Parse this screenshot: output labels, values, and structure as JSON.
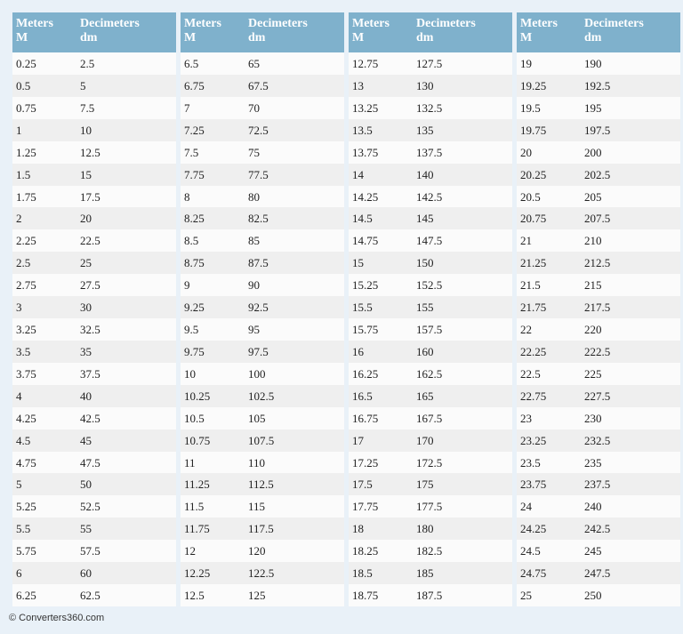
{
  "tables": [
    {
      "columns": [
        [
          "Meters",
          "M"
        ],
        [
          "Decimeters",
          "dm"
        ]
      ],
      "rows": [
        [
          0.25,
          2.5
        ],
        [
          0.5,
          5
        ],
        [
          0.75,
          7.5
        ],
        [
          1,
          10
        ],
        [
          1.25,
          12.5
        ],
        [
          1.5,
          15
        ],
        [
          1.75,
          17.5
        ],
        [
          2,
          20
        ],
        [
          2.25,
          22.5
        ],
        [
          2.5,
          25
        ],
        [
          2.75,
          27.5
        ],
        [
          3,
          30
        ],
        [
          3.25,
          32.5
        ],
        [
          3.5,
          35
        ],
        [
          3.75,
          37.5
        ],
        [
          4,
          40
        ],
        [
          4.25,
          42.5
        ],
        [
          4.5,
          45
        ],
        [
          4.75,
          47.5
        ],
        [
          5,
          50
        ],
        [
          5.25,
          52.5
        ],
        [
          5.5,
          55
        ],
        [
          5.75,
          57.5
        ],
        [
          6,
          60
        ],
        [
          6.25,
          62.5
        ]
      ]
    },
    {
      "columns": [
        [
          "Meters",
          "M"
        ],
        [
          "Decimeters",
          "dm"
        ]
      ],
      "rows": [
        [
          6.5,
          65
        ],
        [
          6.75,
          67.5
        ],
        [
          7,
          70
        ],
        [
          7.25,
          72.5
        ],
        [
          7.5,
          75
        ],
        [
          7.75,
          77.5
        ],
        [
          8,
          80
        ],
        [
          8.25,
          82.5
        ],
        [
          8.5,
          85
        ],
        [
          8.75,
          87.5
        ],
        [
          9,
          90
        ],
        [
          9.25,
          92.5
        ],
        [
          9.5,
          95
        ],
        [
          9.75,
          97.5
        ],
        [
          10,
          100
        ],
        [
          10.25,
          102.5
        ],
        [
          10.5,
          105
        ],
        [
          10.75,
          107.5
        ],
        [
          11,
          110
        ],
        [
          11.25,
          112.5
        ],
        [
          11.5,
          115
        ],
        [
          11.75,
          117.5
        ],
        [
          12,
          120
        ],
        [
          12.25,
          122.5
        ],
        [
          12.5,
          125
        ]
      ]
    },
    {
      "columns": [
        [
          "Meters",
          "M"
        ],
        [
          "Decimeters",
          "dm"
        ]
      ],
      "rows": [
        [
          12.75,
          127.5
        ],
        [
          13,
          130
        ],
        [
          13.25,
          132.5
        ],
        [
          13.5,
          135
        ],
        [
          13.75,
          137.5
        ],
        [
          14,
          140
        ],
        [
          14.25,
          142.5
        ],
        [
          14.5,
          145
        ],
        [
          14.75,
          147.5
        ],
        [
          15,
          150
        ],
        [
          15.25,
          152.5
        ],
        [
          15.5,
          155
        ],
        [
          15.75,
          157.5
        ],
        [
          16,
          160
        ],
        [
          16.25,
          162.5
        ],
        [
          16.5,
          165
        ],
        [
          16.75,
          167.5
        ],
        [
          17,
          170
        ],
        [
          17.25,
          172.5
        ],
        [
          17.5,
          175
        ],
        [
          17.75,
          177.5
        ],
        [
          18,
          180
        ],
        [
          18.25,
          182.5
        ],
        [
          18.5,
          185
        ],
        [
          18.75,
          187.5
        ]
      ]
    },
    {
      "columns": [
        [
          "Meters",
          "M"
        ],
        [
          "Decimeters",
          "dm"
        ]
      ],
      "rows": [
        [
          19,
          190
        ],
        [
          19.25,
          192.5
        ],
        [
          19.5,
          195
        ],
        [
          19.75,
          197.5
        ],
        [
          20,
          200
        ],
        [
          20.25,
          202.5
        ],
        [
          20.5,
          205
        ],
        [
          20.75,
          207.5
        ],
        [
          21,
          210
        ],
        [
          21.25,
          212.5
        ],
        [
          21.5,
          215
        ],
        [
          21.75,
          217.5
        ],
        [
          22,
          220
        ],
        [
          22.25,
          222.5
        ],
        [
          22.5,
          225
        ],
        [
          22.75,
          227.5
        ],
        [
          23,
          230
        ],
        [
          23.25,
          232.5
        ],
        [
          23.5,
          235
        ],
        [
          23.75,
          237.5
        ],
        [
          24,
          240
        ],
        [
          24.25,
          242.5
        ],
        [
          24.5,
          245
        ],
        [
          24.75,
          247.5
        ],
        [
          25,
          250
        ]
      ]
    }
  ],
  "footer": "© Converters360.com"
}
